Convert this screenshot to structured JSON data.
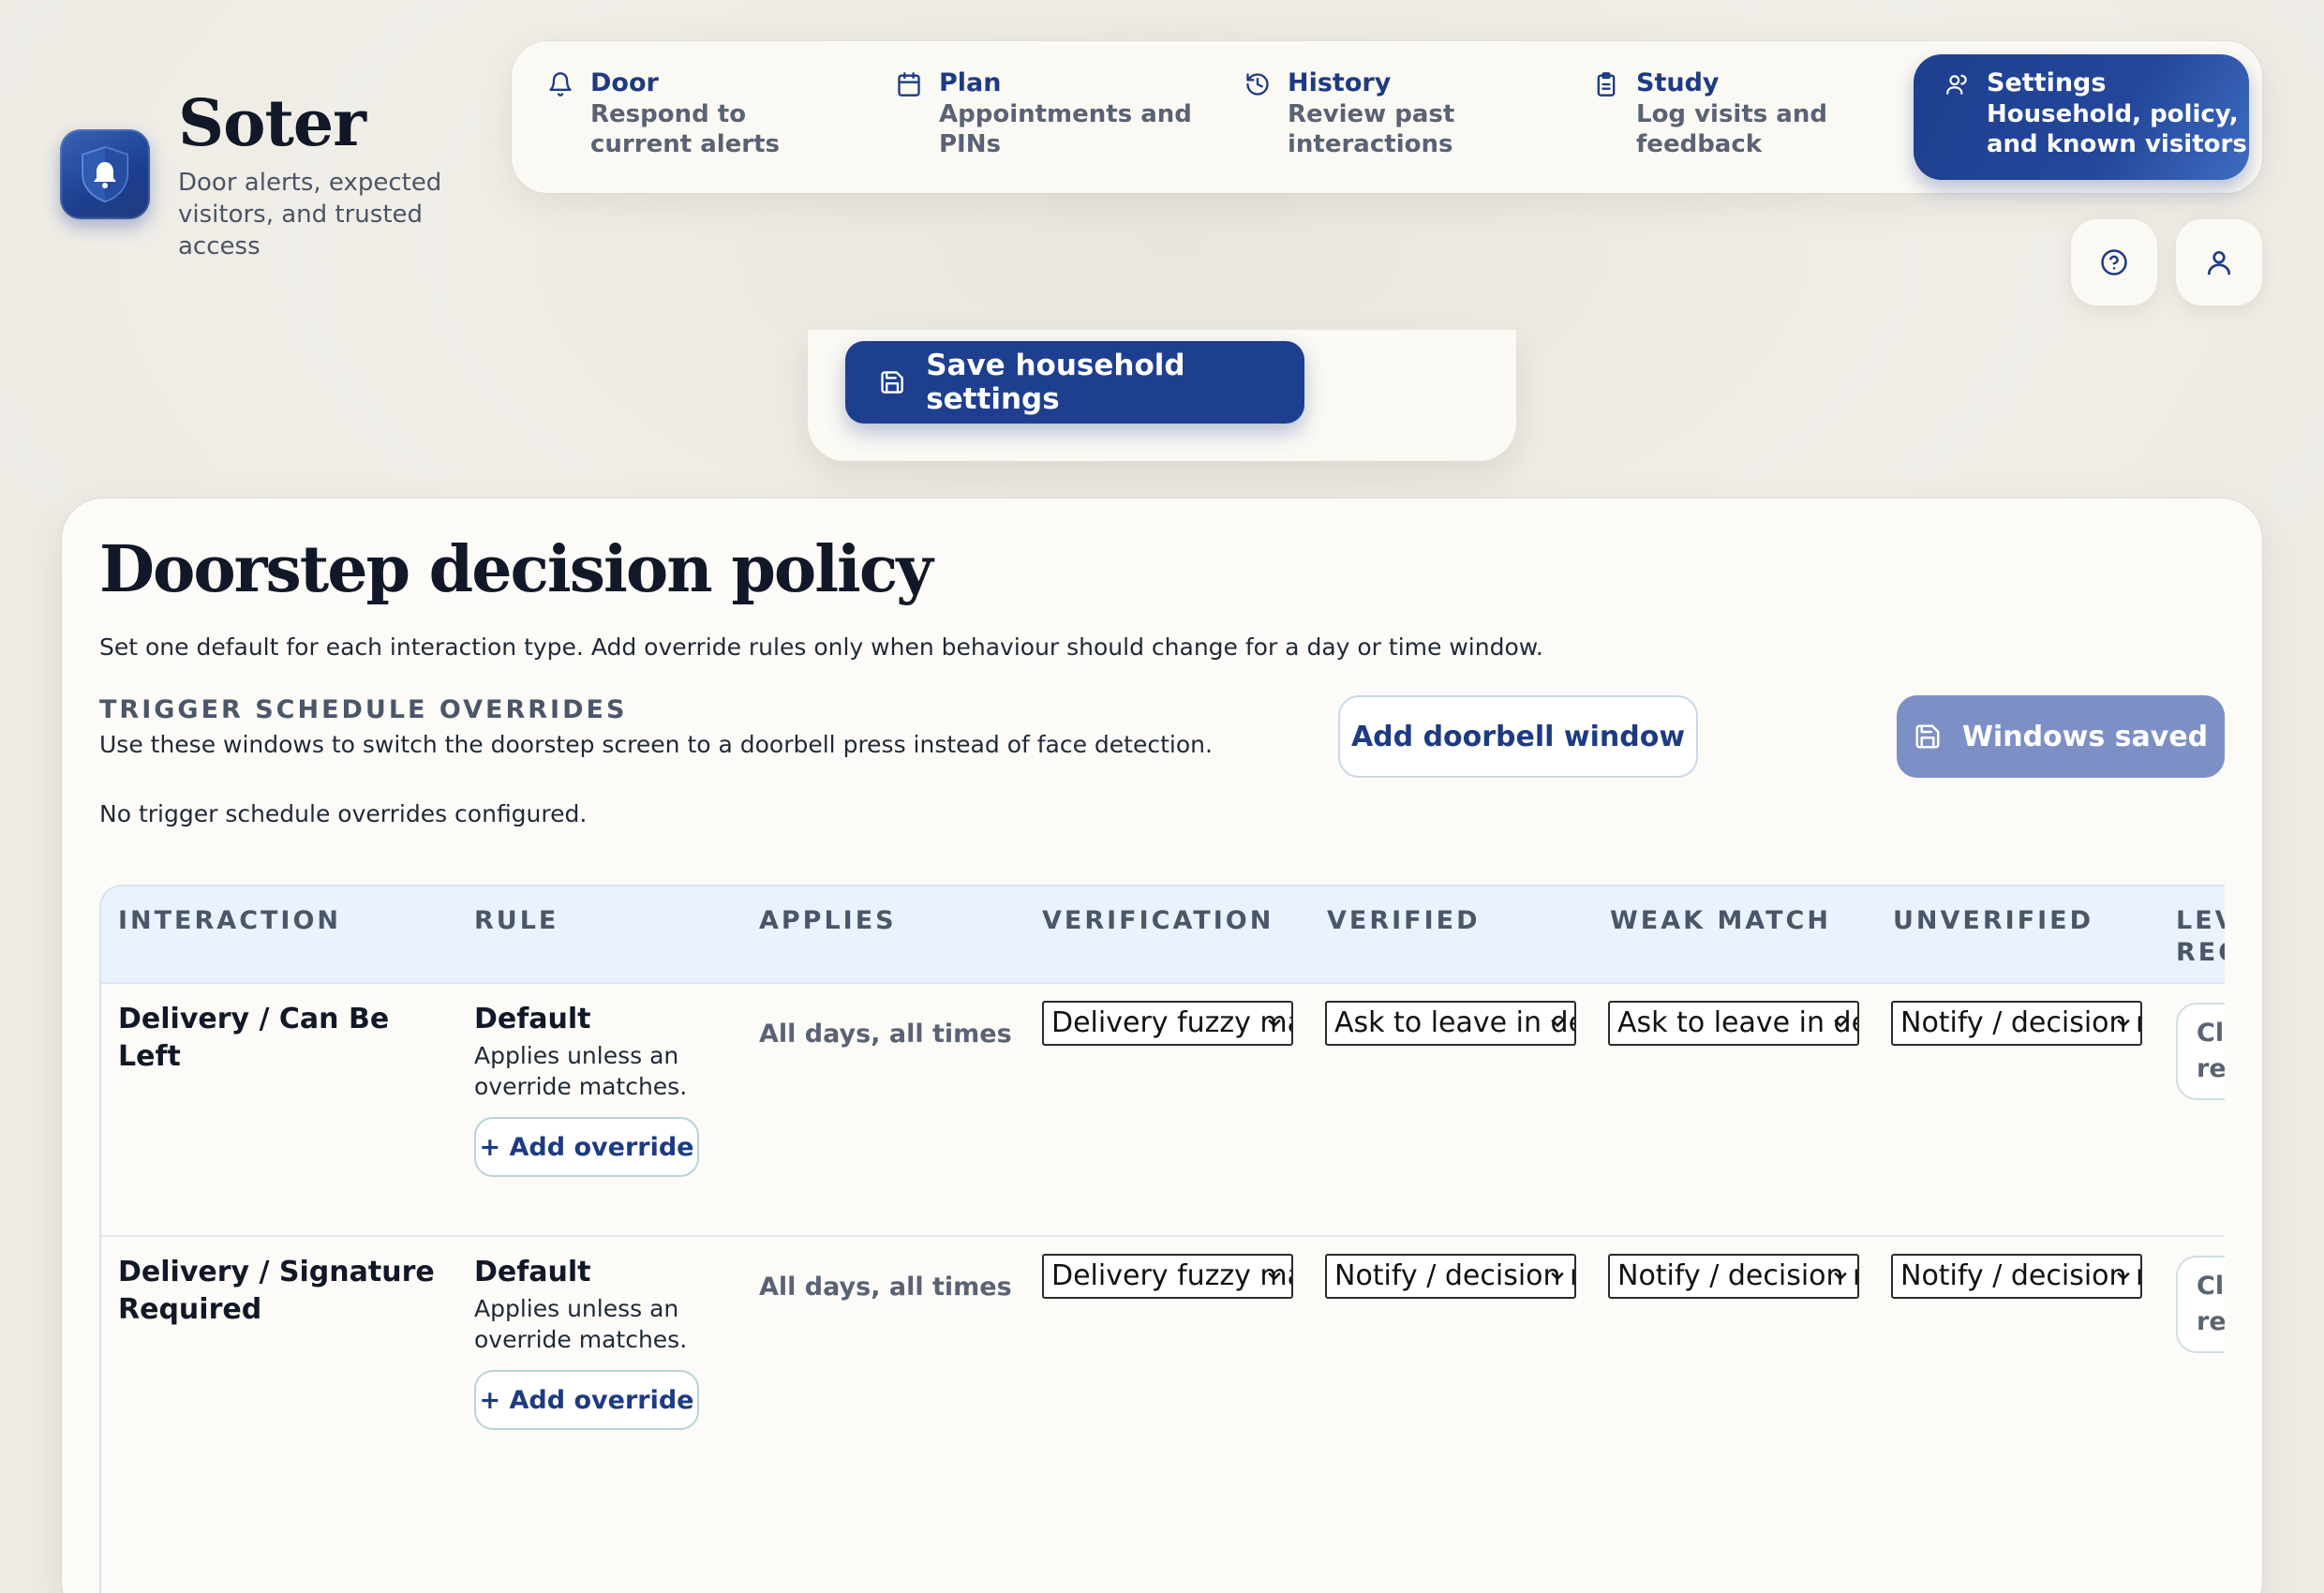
{
  "brand": {
    "title": "Soter",
    "subtitle": "Door alerts, expected visitors, and trusted access"
  },
  "nav": [
    {
      "title": "Door",
      "desc": "Respond to current alerts",
      "icon": "bell-icon"
    },
    {
      "title": "Plan",
      "desc": "Appointments and PINs",
      "icon": "calendar-icon"
    },
    {
      "title": "History",
      "desc": "Review past interactions",
      "icon": "history-icon"
    },
    {
      "title": "Study",
      "desc": "Log visits and feedback",
      "icon": "clipboard-icon"
    },
    {
      "title": "Settings",
      "desc": "Household, policy, and known visitors",
      "icon": "users-icon",
      "active": true
    }
  ],
  "header_actions": {
    "help_icon": "help-icon",
    "profile_icon": "user-icon"
  },
  "save_household_label": "Save household settings",
  "policy": {
    "title": "Doorstep decision policy",
    "description": "Set one default for each interaction type. Add override rules only when behaviour should change for a day or time window.",
    "trigger_section": {
      "title": "TRIGGER SCHEDULE OVERRIDES",
      "description": "Use these windows to switch the doorstep screen to a doorbell press instead of face detection.",
      "add_button": "Add doorbell window",
      "saved_button": "Windows saved",
      "empty_message": "No trigger schedule overrides configured."
    },
    "table": {
      "columns": [
        "INTERACTION",
        "RULE",
        "APPLIES",
        "VERIFICATION",
        "VERIFIED",
        "WEAK MATCH",
        "UNVERIFIED",
        "LEVEL REQ"
      ],
      "rows": [
        {
          "interaction": "Delivery / Can Be Left",
          "rule": "Default",
          "rule_note": "Applies unless an override matches.",
          "add_override": "+ Add override",
          "applies": "All days, all times",
          "verification": "Delivery fuzzy match",
          "verified": "Ask to leave in designated area",
          "weak_match": "Ask to leave in designated area",
          "unverified": "Notify / decision required",
          "level": "Cl re"
        },
        {
          "interaction": "Delivery / Signature Required",
          "rule": "Default",
          "rule_note": "Applies unless an override matches.",
          "add_override": "+ Add override",
          "applies": "All days, all times",
          "verification": "Delivery fuzzy match",
          "verified": "Notify / decision required",
          "weak_match": "Notify / decision required",
          "unverified": "Notify / decision required",
          "level": "Cl re"
        }
      ]
    }
  },
  "colors": {
    "accent": "#1e3f8f",
    "muted_accent": "#7c90c6",
    "table_header": "#eaf2fd",
    "background": "#f1eee8",
    "card": "#fcfbf7"
  }
}
